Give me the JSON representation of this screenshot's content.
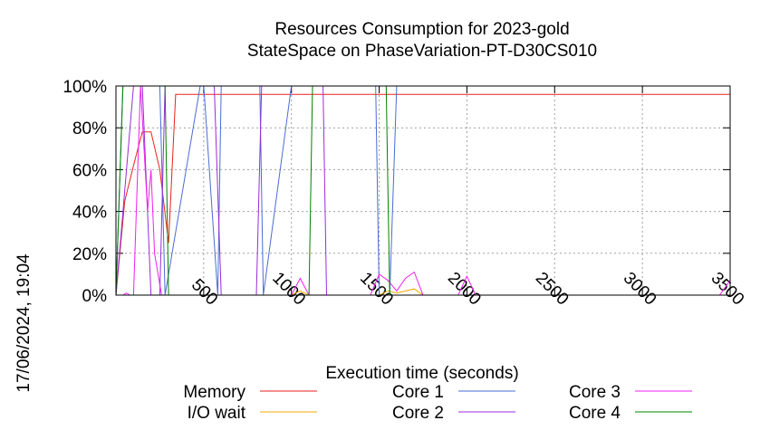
{
  "chart_data": {
    "type": "line",
    "title_line1": "Resources Consumption for 2023-gold",
    "title_line2": "StateSpace on PhaseVariation-PT-D30CS010",
    "xlabel": "Execution time (seconds)",
    "side_label": "17/06/2024, 19:04",
    "xlim": [
      0,
      3500
    ],
    "ylim": [
      0,
      100
    ],
    "yticks": [
      {
        "v": 0,
        "label": "0%"
      },
      {
        "v": 20,
        "label": "20%"
      },
      {
        "v": 40,
        "label": "40%"
      },
      {
        "v": 60,
        "label": "60%"
      },
      {
        "v": 80,
        "label": "80%"
      },
      {
        "v": 100,
        "label": "100%"
      }
    ],
    "xticks": [
      {
        "v": 500,
        "label": "500"
      },
      {
        "v": 1000,
        "label": "1000"
      },
      {
        "v": 1500,
        "label": "1500"
      },
      {
        "v": 2000,
        "label": "2000"
      },
      {
        "v": 2500,
        "label": "2500"
      },
      {
        "v": 3000,
        "label": "3000"
      },
      {
        "v": 3500,
        "label": "3500"
      }
    ],
    "grid": true,
    "legend_position": "bottom",
    "series": [
      {
        "name": "Memory",
        "color": "#e8221e",
        "x": [
          0,
          50,
          100,
          150,
          200,
          250,
          300,
          340,
          3500
        ],
        "y": [
          0,
          45,
          62,
          78,
          78,
          60,
          25,
          96,
          96
        ]
      },
      {
        "name": "I/O wait",
        "color": "#f0a800",
        "x": [
          0,
          1000,
          1050,
          1100,
          1500,
          1550,
          1600,
          1650,
          1700,
          1750,
          2000,
          3500
        ],
        "y": [
          0,
          0,
          2,
          0,
          0,
          2,
          1,
          2,
          3,
          0,
          0,
          0
        ]
      },
      {
        "name": "Core 1",
        "color": "#4a6cd4",
        "x": [
          0,
          40,
          250,
          280,
          480,
          500,
          580,
          600,
          820,
          840,
          1000,
          1480,
          1500,
          1560,
          1600,
          3500
        ],
        "y": [
          0,
          100,
          100,
          0,
          100,
          100,
          0,
          100,
          100,
          0,
          100,
          100,
          0,
          0,
          100,
          100
        ]
      },
      {
        "name": "Core 2",
        "color": "#9a2bd9",
        "x": [
          0,
          100,
          150,
          200,
          250,
          280,
          560,
          600,
          800,
          830,
          1180,
          1200,
          3500
        ],
        "y": [
          0,
          100,
          100,
          0,
          0,
          100,
          100,
          0,
          0,
          100,
          100,
          0,
          0
        ]
      },
      {
        "name": "Core 3",
        "color": "#f020f0",
        "x": [
          0,
          40,
          60,
          80,
          100,
          140,
          180,
          200,
          220,
          260,
          300,
          1000,
          1050,
          1100,
          1450,
          1500,
          1550,
          1600,
          1650,
          1700,
          1750,
          1950,
          2000,
          2050,
          3440,
          3500
        ],
        "y": [
          0,
          0,
          1,
          0,
          0,
          100,
          40,
          60,
          20,
          0,
          0,
          0,
          8,
          0,
          0,
          10,
          7,
          2,
          8,
          11,
          0,
          0,
          9,
          0,
          0,
          7
        ]
      },
      {
        "name": "Core 4",
        "color": "#008000",
        "x": [
          0,
          40,
          280,
          300,
          1100,
          1120,
          1540,
          1560,
          3500
        ],
        "y": [
          0,
          100,
          100,
          0,
          0,
          100,
          100,
          0,
          0
        ]
      }
    ]
  }
}
